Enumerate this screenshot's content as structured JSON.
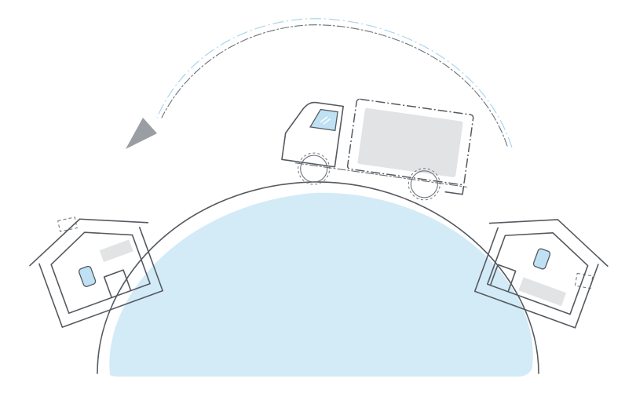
{
  "illustration": {
    "globe_fill": "#d3ebf7",
    "glass_fill": "#bfe1f3",
    "cargo_fill": "#e2e3e5",
    "arrow_fill": "#9a9da3",
    "outline": "#555a60",
    "accent_line": "#a9d6ec"
  },
  "icons": [
    "truck-icon",
    "house-icon",
    "return-arrow-icon"
  ]
}
